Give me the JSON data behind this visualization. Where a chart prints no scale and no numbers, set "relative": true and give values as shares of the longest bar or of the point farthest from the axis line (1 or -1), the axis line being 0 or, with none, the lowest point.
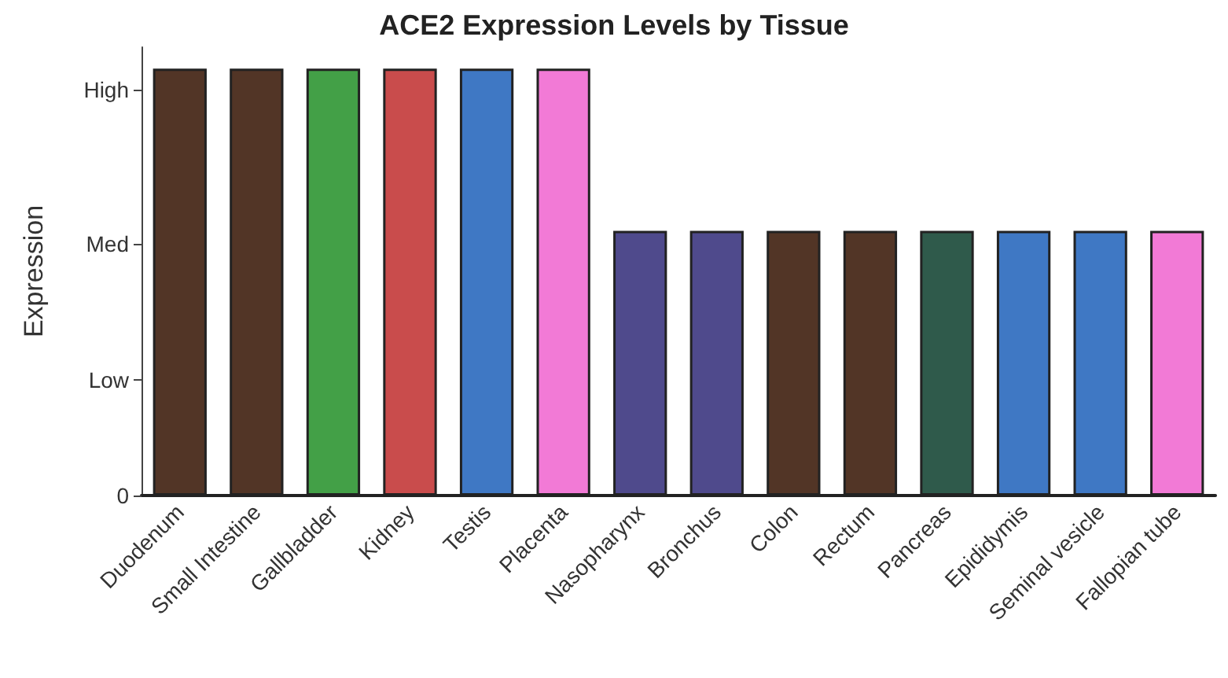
{
  "chart_data": {
    "type": "bar",
    "title": "ACE2 Expression Levels by Tissue",
    "ylabel": "Expression",
    "relative": true,
    "categories": [
      "Duodenum",
      "Small Intestine",
      "Gallbladder",
      "Kidney",
      "Testis",
      "Placenta",
      "Nasopharynx",
      "Bronchus",
      "Colon",
      "Rectum",
      "Pancreas",
      "Epididymis",
      "Seminal vesicle",
      "Fallopian tube"
    ],
    "values": [
      1,
      1,
      1,
      1,
      1,
      1,
      0.62,
      0.62,
      0.62,
      0.62,
      0.62,
      0.62,
      0.62,
      0.62
    ],
    "colors": [
      "#523526",
      "#523526",
      "#43a047",
      "#c94c4c",
      "#3f78c4",
      "#f27ad6",
      "#4f4a8c",
      "#4f4a8c",
      "#523526",
      "#523526",
      "#2f5a4b",
      "#3f78c4",
      "#3f78c4",
      "#f27ad6"
    ],
    "ref_lines": [
      {
        "axis": "y",
        "value": 0,
        "label": "0"
      },
      {
        "axis": "y",
        "value": 0.27,
        "label": "Low"
      },
      {
        "axis": "y",
        "value": 0.59,
        "label": "Med"
      },
      {
        "axis": "y",
        "value": 0.95,
        "label": "High"
      }
    ]
  }
}
